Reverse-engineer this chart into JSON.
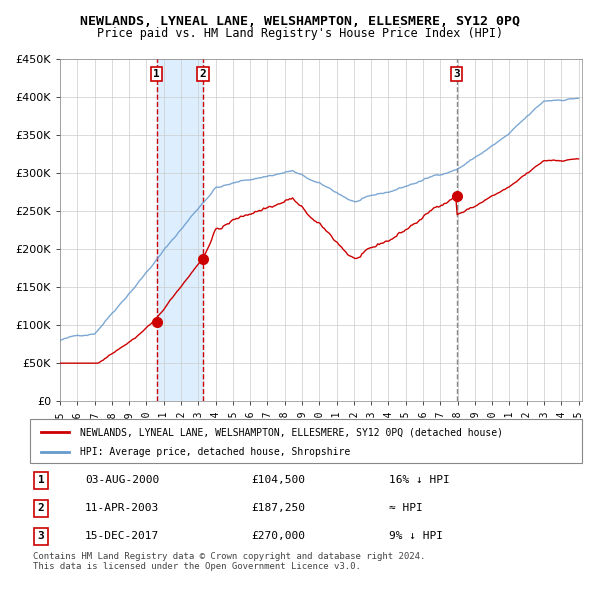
{
  "title": "NEWLANDS, LYNEAL LANE, WELSHAMPTON, ELLESMERE, SY12 0PQ",
  "subtitle": "Price paid vs. HM Land Registry's House Price Index (HPI)",
  "red_label": "NEWLANDS, LYNEAL LANE, WELSHAMPTON, ELLESMERE, SY12 0PQ (detached house)",
  "blue_label": "HPI: Average price, detached house, Shropshire",
  "table_rows": [
    {
      "num": "1",
      "date": "03-AUG-2000",
      "price": "£104,500",
      "rel": "16% ↓ HPI"
    },
    {
      "num": "2",
      "date": "11-APR-2003",
      "price": "£187,250",
      "rel": "≈ HPI"
    },
    {
      "num": "3",
      "date": "15-DEC-2017",
      "price": "£270,000",
      "rel": "9% ↓ HPI"
    }
  ],
  "footer": "Contains HM Land Registry data © Crown copyright and database right 2024.\nThis data is licensed under the Open Government Licence v3.0.",
  "ylim": [
    0,
    450000
  ],
  "yticks": [
    0,
    50000,
    100000,
    150000,
    200000,
    250000,
    300000,
    350000,
    400000,
    450000
  ],
  "ytick_labels": [
    "£0",
    "£50K",
    "£100K",
    "£150K",
    "£200K",
    "£250K",
    "£300K",
    "£350K",
    "£400K",
    "£450K"
  ],
  "year_start": 1995,
  "year_end": 2025,
  "sale1_year": 2000.586,
  "sale1_price": 104500,
  "sale2_year": 2003.278,
  "sale2_price": 187250,
  "sale3_year": 2017.956,
  "sale3_price": 270000,
  "red_color": "#cc0000",
  "blue_color": "#6699cc",
  "bg_color": "#ffffff",
  "plot_bg": "#ffffff",
  "grid_color": "#cccccc",
  "shade_color": "#ddeeff",
  "hatch_color": "#cccccc"
}
